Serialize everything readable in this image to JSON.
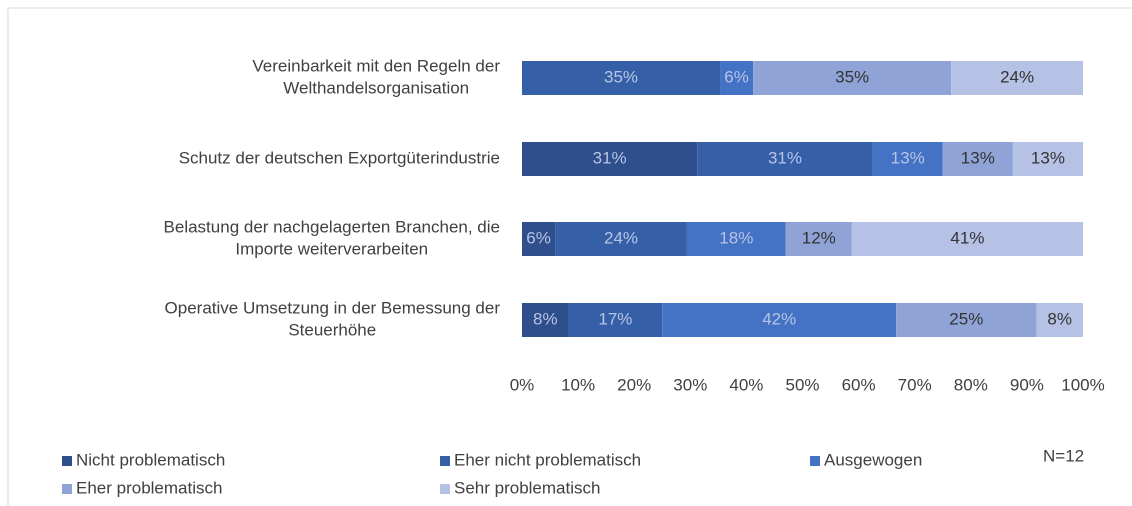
{
  "chart_data": {
    "type": "stacked-bar-horizontal",
    "categories": [
      [
        "Vereinbarkeit mit den Regeln der",
        "Welthandelsorganisation"
      ],
      [
        "Schutz der deutschen Exportgüterindustrie"
      ],
      [
        "Belastung der nachgelagerten Branchen, die",
        "Importe weiterverarbeiten"
      ],
      [
        "Operative Umsetzung in der Bemessung der",
        "Steuerhöhe"
      ]
    ],
    "series": [
      {
        "name": "Nicht problematisch",
        "color": "#2e4f8c",
        "values": [
          0,
          31.25,
          5.9,
          8.3
        ],
        "value_labels": [
          null,
          "31%",
          "6%",
          "8%"
        ]
      },
      {
        "name": "Eher nicht problematisch",
        "color": "#3560a8",
        "values": [
          35.3,
          31.25,
          23.5,
          16.7
        ],
        "value_labels": [
          "35%",
          "31%",
          "24%",
          "17%"
        ]
      },
      {
        "name": "Ausgewogen",
        "color": "#4472c4",
        "values": [
          5.9,
          12.5,
          17.6,
          41.7
        ],
        "value_labels": [
          "6%",
          "13%",
          "18%",
          "42%"
        ]
      },
      {
        "name": "Eher problematisch",
        "color": "#8fa3d6",
        "values": [
          35.3,
          12.5,
          11.8,
          25
        ],
        "value_labels": [
          "35%",
          "13%",
          "12%",
          "25%"
        ]
      },
      {
        "name": "Sehr problematisch",
        "color": "#b5c2e5",
        "values": [
          23.5,
          12.5,
          41.2,
          8.3
        ],
        "value_labels": [
          "24%",
          "13%",
          "41%",
          "8%"
        ]
      }
    ],
    "xlim": [
      0,
      100
    ],
    "xticks": [
      {
        "value": 0,
        "label": "0%"
      },
      {
        "value": 10,
        "label": "10%"
      },
      {
        "value": 20,
        "label": "20%"
      },
      {
        "value": 30,
        "label": "30%"
      },
      {
        "value": 40,
        "label": "40%"
      },
      {
        "value": 50,
        "label": "50%"
      },
      {
        "value": 60,
        "label": "60%"
      },
      {
        "value": 70,
        "label": "70%"
      },
      {
        "value": 80,
        "label": "80%"
      },
      {
        "value": 90,
        "label": "90%"
      },
      {
        "value": 100,
        "label": "100%"
      }
    ],
    "annotation": "N=12"
  }
}
